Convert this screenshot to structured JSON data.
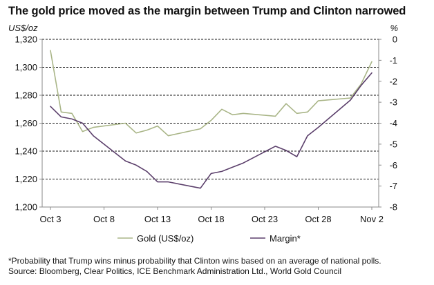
{
  "title": "The gold price moved as the margin between Trump and Clinton narrowed",
  "footnote": "*Probability that Trump wins minus probability that Clinton wins based on an average of national polls.",
  "source": "Source: Bloomberg, Clear Politics, ICE Benchmark Administration Ltd., World Gold Council",
  "colors": {
    "gold": "#a9b587",
    "margin": "#5b3f6b",
    "grid": "#111111",
    "axis": "#888888"
  },
  "chart_data": {
    "type": "line",
    "x_unit": "date (Oct–Nov 2016)",
    "x_tick_labels": [
      "Oct 3",
      "Oct 8",
      "Oct 13",
      "Oct 18",
      "Oct 23",
      "Oct 28",
      "Nov 2"
    ],
    "x_ticks_day": [
      3,
      8,
      13,
      18,
      23,
      28,
      33
    ],
    "xlim_day": [
      3,
      33
    ],
    "y_left": {
      "label": "US$/oz",
      "range": [
        1200,
        1320
      ],
      "ticks": [
        1200,
        1220,
        1240,
        1260,
        1280,
        1300,
        1320
      ],
      "tick_labels": [
        "1,200",
        "1,220",
        "1,240",
        "1,260",
        "1,280",
        "1,300",
        "1,320"
      ]
    },
    "y_right": {
      "label": "%",
      "range": [
        -8,
        0
      ],
      "ticks": [
        -8,
        -7,
        -6,
        -5,
        -4,
        -3,
        -2,
        -1,
        0
      ],
      "tick_labels": [
        "-8",
        "-7",
        "-6",
        "-5",
        "-4",
        "-3",
        "-2",
        "-1",
        "0"
      ]
    },
    "grid": "horizontal dashed",
    "legend_position": "bottom",
    "series": [
      {
        "name": "Gold (US$/oz)",
        "axis": "left",
        "x_day": [
          3,
          4,
          5,
          6,
          7,
          10,
          11,
          12,
          13,
          14,
          17,
          18,
          19,
          20,
          21,
          24,
          25,
          26,
          27,
          28,
          31,
          32,
          33
        ],
        "values": [
          1312,
          1268,
          1267,
          1254,
          1257,
          1260,
          1253,
          1255,
          1258,
          1251,
          1256,
          1262,
          1270,
          1266,
          1267,
          1265,
          1274,
          1267,
          1268,
          1276,
          1278,
          1288,
          1304
        ]
      },
      {
        "name": "Margin*",
        "axis": "right",
        "x_day": [
          3,
          4,
          5,
          6,
          7,
          10,
          11,
          12,
          13,
          14,
          17,
          18,
          19,
          20,
          21,
          24,
          25,
          26,
          27,
          28,
          31,
          32,
          33
        ],
        "values": [
          -3.2,
          -3.7,
          -3.8,
          -4.0,
          -4.6,
          -5.8,
          -6.0,
          -6.3,
          -6.8,
          -6.8,
          -7.1,
          -6.4,
          -6.3,
          -6.1,
          -5.9,
          -5.1,
          -5.3,
          -5.6,
          -4.6,
          -4.2,
          -2.9,
          -2.2,
          -1.6
        ]
      }
    ]
  }
}
